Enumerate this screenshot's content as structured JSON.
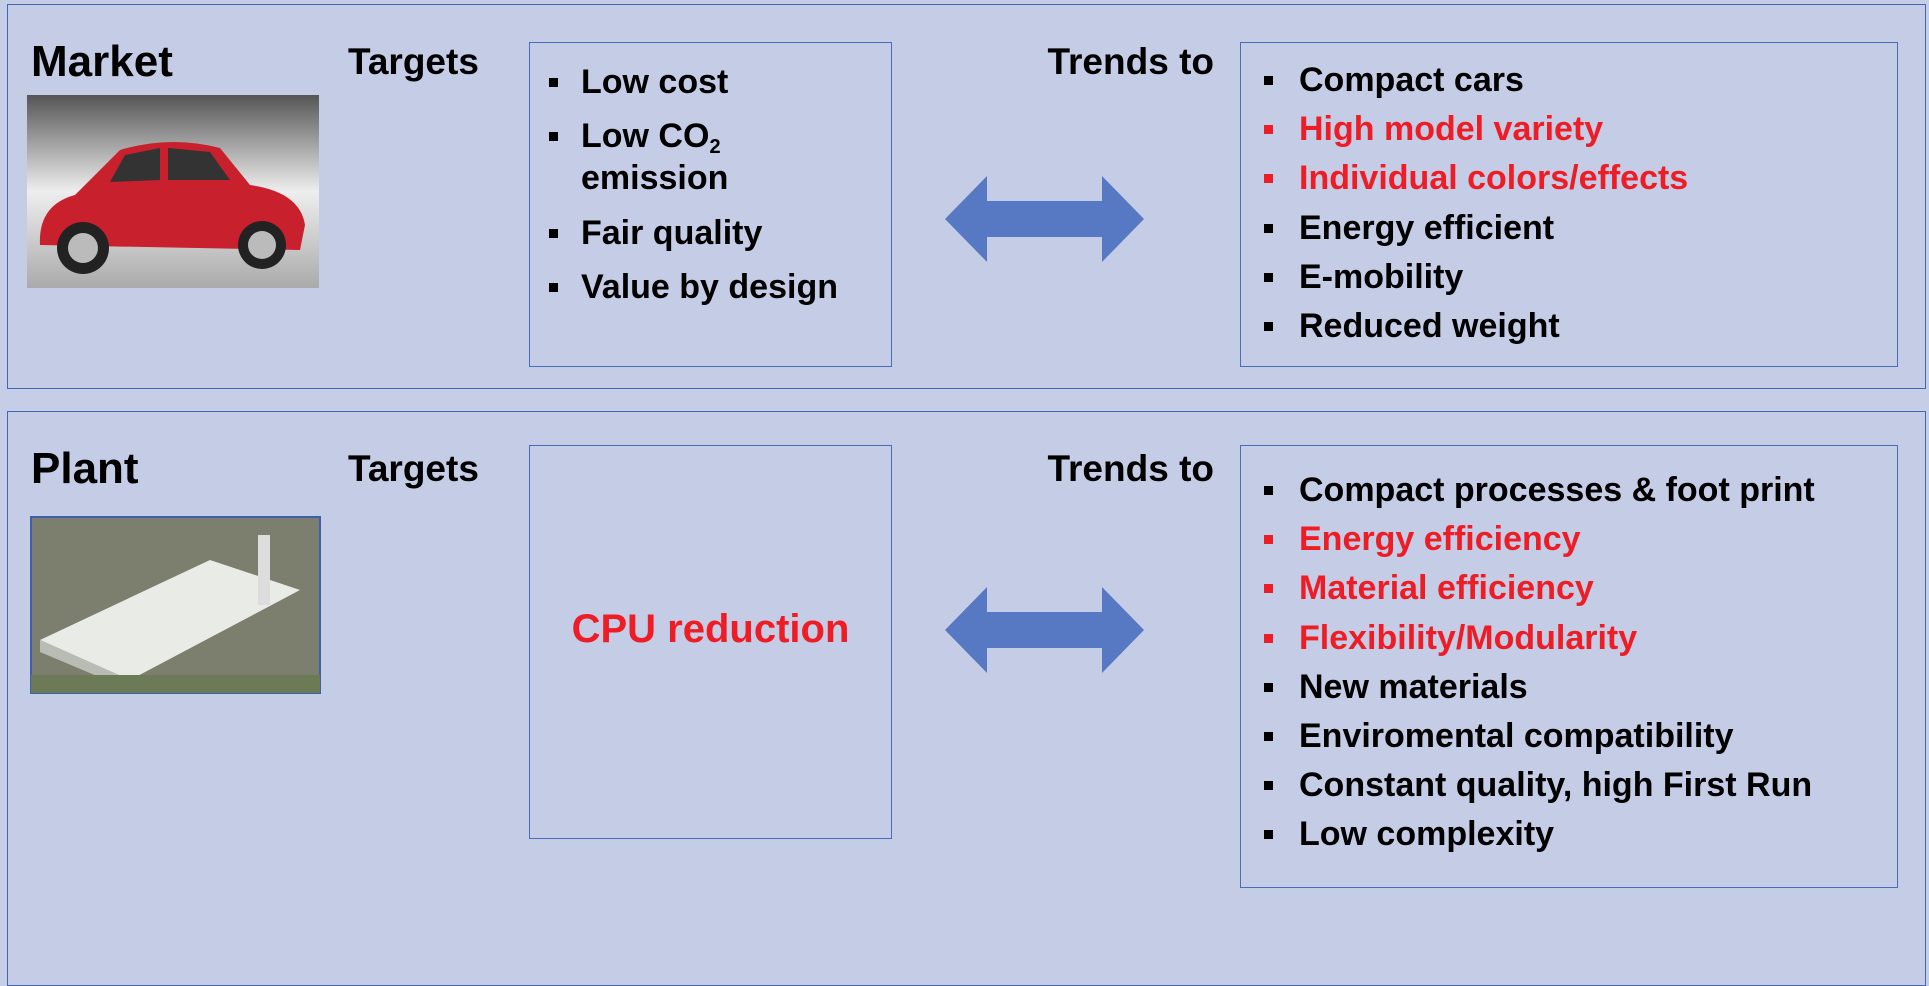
{
  "sections": [
    {
      "title": "Market",
      "targets_label": "Targets",
      "targets": [
        {
          "text": "Low cost",
          "color": "#000000"
        },
        {
          "text": "Low CO",
          "subscript": "2",
          "continuation": "emission",
          "color": "#000000"
        },
        {
          "text": "Fair quality",
          "color": "#000000"
        },
        {
          "text": "Value by design",
          "color": "#000000"
        }
      ],
      "trends_label": "Trends to",
      "trends": [
        {
          "text": "Compact cars",
          "color": "#000000"
        },
        {
          "text": "High model variety",
          "color": "#ee1c25"
        },
        {
          "text": "Individual colors/effects",
          "color": "#ee1c25"
        },
        {
          "text": "Energy efficient",
          "color": "#000000"
        },
        {
          "text": "E-mobility",
          "color": "#000000"
        },
        {
          "text": "Reduced weight",
          "color": "#000000"
        }
      ]
    },
    {
      "title": "Plant",
      "targets_label": "Targets",
      "target_text": {
        "text": "CPU reduction",
        "color": "#ee1c25"
      },
      "trends_label": "Trends to",
      "trends": [
        {
          "text": "Compact processes & foot print",
          "color": "#000000"
        },
        {
          "text": "Energy efficiency",
          "color": "#ee1c25"
        },
        {
          "text": "Material efficiency",
          "color": "#ee1c25"
        },
        {
          "text": "Flexibility/Modularity",
          "color": "#ee1c25"
        },
        {
          "text": "New materials",
          "color": "#000000"
        },
        {
          "text": "Enviromental compatibility",
          "color": "#000000"
        },
        {
          "text": "Constant quality, high First Run",
          "color": "#000000"
        },
        {
          "text": "Low complexity",
          "color": "#000000"
        }
      ]
    }
  ]
}
